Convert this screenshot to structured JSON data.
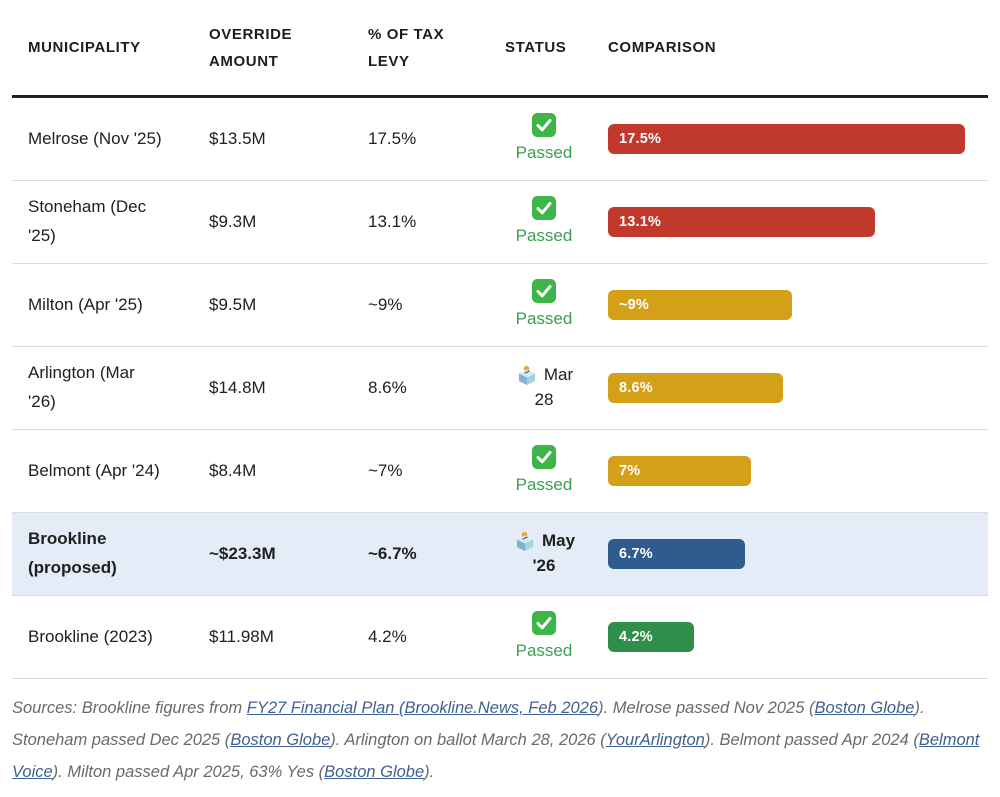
{
  "colors": {
    "header_rule": "#212121",
    "row_separator": "#dcdcdc",
    "highlight_row_bg": "#e4edf7",
    "passed_green_text": "#3c9e52",
    "bar_red": "#c0392b",
    "bar_gold": "#d4a017",
    "bar_blue": "#2e5c8c",
    "bar_green": "#2f8f4a",
    "link_blue": "#40618f",
    "footer_gray": "#6a6a6a"
  },
  "table": {
    "headers": [
      {
        "id": "municipality",
        "label": "MUNICIPALITY"
      },
      {
        "id": "override-amount",
        "label": "OVERRIDE\nAMOUNT"
      },
      {
        "id": "tax-levy",
        "label": "% OF TAX\nLEVY"
      },
      {
        "id": "status",
        "label": "STATUS"
      },
      {
        "id": "comparison",
        "label": "COMPARISON"
      }
    ],
    "bar_scale_max": 17.5,
    "rows": [
      {
        "municipality": "Melrose (Nov '25)",
        "amount": "$13.5M",
        "levy": "17.5%",
        "status": {
          "state": "passed",
          "icon": "check-icon",
          "text": "Passed"
        },
        "bar": {
          "value": 17.5,
          "label": "17.5%",
          "color": "#c0392b"
        },
        "highlight": false
      },
      {
        "municipality": "Stoneham (Dec\n'25)",
        "amount": "$9.3M",
        "levy": "13.1%",
        "status": {
          "state": "passed",
          "icon": "check-icon",
          "text": "Passed"
        },
        "bar": {
          "value": 13.1,
          "label": "13.1%",
          "color": "#c0392b"
        },
        "highlight": false
      },
      {
        "municipality": "Milton (Apr '25)",
        "amount": "$9.5M",
        "levy": "~9%",
        "status": {
          "state": "passed",
          "icon": "check-icon",
          "text": "Passed"
        },
        "bar": {
          "value": 9,
          "label": "~9%",
          "color": "#d4a017"
        },
        "highlight": false
      },
      {
        "municipality": "Arlington (Mar\n'26)",
        "amount": "$14.8M",
        "levy": "8.6%",
        "status": {
          "state": "scheduled",
          "icon": "ballot-box-icon",
          "text": "Mar\n28"
        },
        "bar": {
          "value": 8.6,
          "label": "8.6%",
          "color": "#d4a017"
        },
        "highlight": false
      },
      {
        "municipality": "Belmont (Apr '24)",
        "amount": "$8.4M",
        "levy": "~7%",
        "status": {
          "state": "passed",
          "icon": "check-icon",
          "text": "Passed"
        },
        "bar": {
          "value": 7,
          "label": "7%",
          "color": "#d4a017"
        },
        "highlight": false
      },
      {
        "municipality": "Brookline\n(proposed)",
        "amount": "~$23.3M",
        "levy": "~6.7%",
        "status": {
          "state": "scheduled",
          "icon": "ballot-box-icon",
          "text": "May\n'26"
        },
        "bar": {
          "value": 6.7,
          "label": "6.7%",
          "color": "#2e5c8c"
        },
        "highlight": true
      },
      {
        "municipality": "Brookline (2023)",
        "amount": "$11.98M",
        "levy": "4.2%",
        "status": {
          "state": "passed",
          "icon": "check-icon",
          "text": "Passed"
        },
        "bar": {
          "value": 4.2,
          "label": "4.2%",
          "color": "#2f8f4a"
        },
        "highlight": false
      }
    ]
  },
  "footer": {
    "segments": [
      {
        "type": "text",
        "text": "Sources: Brookline figures from "
      },
      {
        "type": "link",
        "text": "FY27 Financial Plan (Brookline.News, Feb 2026"
      },
      {
        "type": "text",
        "text": "). Melrose passed Nov 2025 ("
      },
      {
        "type": "link",
        "text": "Boston Globe"
      },
      {
        "type": "text",
        "text": "). Stoneham passed Dec 2025 ("
      },
      {
        "type": "link",
        "text": "Boston Globe"
      },
      {
        "type": "text",
        "text": "). Arlington on ballot March 28, 2026 ("
      },
      {
        "type": "link",
        "text": "YourArlington"
      },
      {
        "type": "text",
        "text": "). Belmont passed Apr 2024 ("
      },
      {
        "type": "link",
        "text": "Belmont Voice"
      },
      {
        "type": "text",
        "text": "). Milton passed Apr 2025, 63% Yes ("
      },
      {
        "type": "link",
        "text": "Boston Globe"
      },
      {
        "type": "text",
        "text": ")."
      }
    ]
  },
  "chart_data": {
    "type": "table",
    "columns": [
      "Municipality",
      "Override Amount",
      "% of Tax Levy",
      "Status",
      "Comparison"
    ],
    "rows": [
      [
        "Melrose (Nov '25)",
        "$13.5M",
        "17.5%",
        "Passed",
        "17.5%"
      ],
      [
        "Stoneham (Dec '25)",
        "$9.3M",
        "13.1%",
        "Passed",
        "13.1%"
      ],
      [
        "Milton (Apr '25)",
        "$9.5M",
        "~9%",
        "Passed",
        "~9%"
      ],
      [
        "Arlington (Mar '26)",
        "$14.8M",
        "8.6%",
        "Mar 28",
        "8.6%"
      ],
      [
        "Belmont (Apr '24)",
        "$8.4M",
        "~7%",
        "Passed",
        "7%"
      ],
      [
        "Brookline (proposed)",
        "~$23.3M",
        "~6.7%",
        "May '26",
        "6.7%"
      ],
      [
        "Brookline (2023)",
        "$11.98M",
        "4.2%",
        "Passed",
        "4.2%"
      ]
    ],
    "bar_values": [
      17.5,
      13.1,
      9,
      8.6,
      7,
      6.7,
      4.2
    ],
    "bar_colors": [
      "#c0392b",
      "#c0392b",
      "#d4a017",
      "#d4a017",
      "#d4a017",
      "#2e5c8c",
      "#2f8f4a"
    ],
    "bar_scale_max": 17.5,
    "legend_position": "none",
    "grid": false
  }
}
